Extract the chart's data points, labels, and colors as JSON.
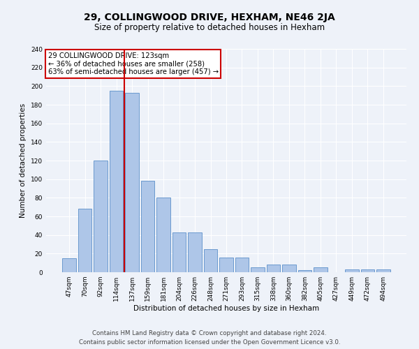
{
  "title": "29, COLLINGWOOD DRIVE, HEXHAM, NE46 2JA",
  "subtitle": "Size of property relative to detached houses in Hexham",
  "xlabel": "Distribution of detached houses by size in Hexham",
  "ylabel": "Number of detached properties",
  "footer_line1": "Contains HM Land Registry data © Crown copyright and database right 2024.",
  "footer_line2": "Contains public sector information licensed under the Open Government Licence v3.0.",
  "categories": [
    "47sqm",
    "70sqm",
    "92sqm",
    "114sqm",
    "137sqm",
    "159sqm",
    "181sqm",
    "204sqm",
    "226sqm",
    "248sqm",
    "271sqm",
    "293sqm",
    "315sqm",
    "338sqm",
    "360sqm",
    "382sqm",
    "405sqm",
    "427sqm",
    "449sqm",
    "472sqm",
    "494sqm"
  ],
  "values": [
    15,
    68,
    120,
    195,
    193,
    98,
    80,
    43,
    43,
    25,
    16,
    16,
    5,
    8,
    8,
    2,
    5,
    0,
    3,
    3,
    3
  ],
  "bar_color": "#aec6e8",
  "bar_edge_color": "#5b8fc9",
  "vline_x": 3.5,
  "vline_color": "#cc0000",
  "annotation_title": "29 COLLINGWOOD DRIVE: 123sqm",
  "annotation_line1": "← 36% of detached houses are smaller (258)",
  "annotation_line2": "63% of semi-detached houses are larger (457) →",
  "annotation_box_color": "#cc0000",
  "annotation_text_color": "#000000",
  "ylim": [
    0,
    240
  ],
  "yticks": [
    0,
    20,
    40,
    60,
    80,
    100,
    120,
    140,
    160,
    180,
    200,
    220,
    240
  ],
  "bg_color": "#eef2f9",
  "grid_color": "#ffffff",
  "title_fontsize": 10,
  "subtitle_fontsize": 8.5,
  "axis_label_fontsize": 7.5,
  "tick_fontsize": 6.5,
  "annotation_fontsize": 7.2,
  "footer_fontsize": 6.2
}
